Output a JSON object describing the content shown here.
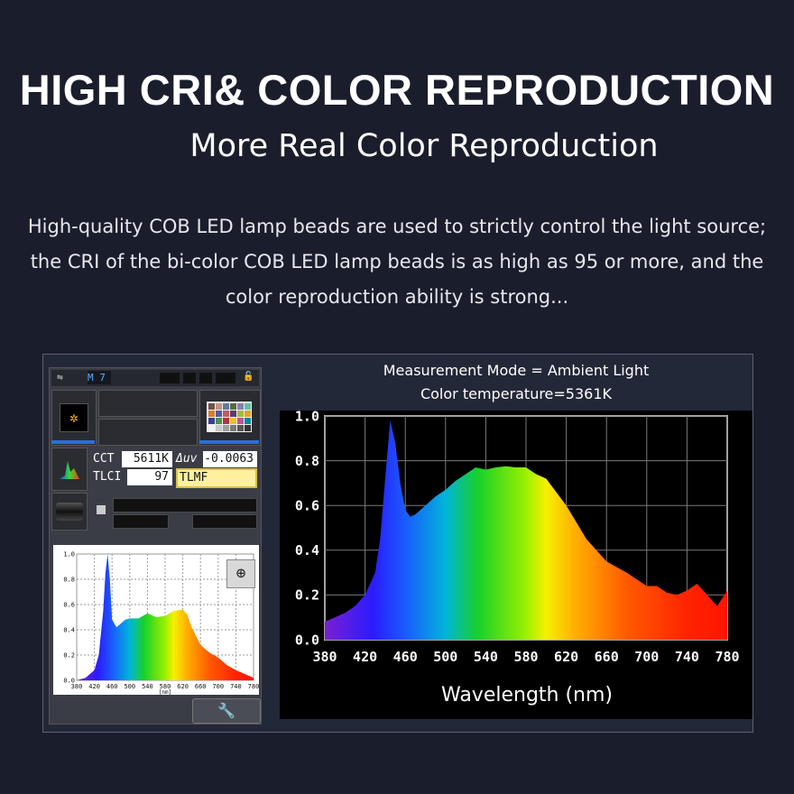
{
  "headline": "HIGH CRI& COLOR REPRODUCTION",
  "subheadline": "More Real Color Reproduction",
  "description": "High-quality COB LED lamp beads are used to strictly control the light source; the CRI of the bi-color COB LED lamp beads is as high as 95 or more, and the color reproduction ability is strong...",
  "device": {
    "mode_label": "M 7",
    "cct_label": "CCT",
    "cct_value": "5611K",
    "duv_label": "Δuv",
    "duv_value": "-0.0063",
    "tlci_label": "TLCI",
    "tlci_value": "97",
    "tlmf_label": "TLMF",
    "mini_chart_unit": "[nm]",
    "icons": {
      "usb": "usb-icon",
      "sun": "sun-icon",
      "color_checker": "color-checker-icon",
      "spectrum": "spectrum-icon",
      "zoom": "zoom-in-icon",
      "wrench": "wrench-icon",
      "lock": "lock-icon"
    }
  },
  "chart_data": [
    {
      "type": "area",
      "title": "",
      "xlabel": "",
      "ylabel": "",
      "x_unit": "[nm]",
      "xlim": [
        380,
        780
      ],
      "ylim": [
        0,
        1.0
      ],
      "x_ticks": [
        380,
        420,
        460,
        500,
        540,
        580,
        620,
        660,
        700,
        740,
        780
      ],
      "y_ticks": [
        "0.0",
        "0.2",
        "0.4",
        "0.6",
        "0.8",
        "1.0"
      ],
      "grid": true,
      "x": [
        380,
        400,
        420,
        430,
        440,
        445,
        450,
        455,
        460,
        470,
        480,
        490,
        500,
        520,
        540,
        560,
        580,
        600,
        620,
        630,
        640,
        660,
        680,
        700,
        720,
        740,
        760,
        780
      ],
      "values": [
        0.0,
        0.02,
        0.08,
        0.2,
        0.55,
        0.85,
        1.0,
        0.8,
        0.48,
        0.42,
        0.45,
        0.48,
        0.49,
        0.49,
        0.53,
        0.5,
        0.51,
        0.55,
        0.56,
        0.52,
        0.42,
        0.28,
        0.22,
        0.18,
        0.12,
        0.08,
        0.05,
        0.02
      ]
    },
    {
      "type": "area",
      "title": "Measurement Mode = Ambient Light",
      "subtitle": "Color temperature=5361K",
      "xlabel": "Wavelength (nm)",
      "ylabel": "",
      "xlim": [
        380,
        780
      ],
      "ylim": [
        0,
        1.0
      ],
      "x_ticks": [
        380,
        420,
        460,
        500,
        540,
        580,
        620,
        660,
        700,
        740,
        780
      ],
      "y_ticks": [
        "0.0",
        "0.2",
        "0.4",
        "0.6",
        "0.8",
        "1.0"
      ],
      "grid": true,
      "x": [
        380,
        390,
        400,
        410,
        420,
        430,
        435,
        440,
        445,
        450,
        455,
        460,
        465,
        470,
        480,
        490,
        500,
        510,
        520,
        530,
        540,
        550,
        560,
        570,
        580,
        590,
        600,
        620,
        640,
        660,
        680,
        700,
        710,
        720,
        730,
        740,
        750,
        760,
        770,
        780
      ],
      "values": [
        0.08,
        0.1,
        0.12,
        0.15,
        0.2,
        0.3,
        0.45,
        0.72,
        0.98,
        0.88,
        0.7,
        0.58,
        0.55,
        0.56,
        0.6,
        0.64,
        0.67,
        0.71,
        0.74,
        0.77,
        0.76,
        0.77,
        0.775,
        0.77,
        0.77,
        0.74,
        0.72,
        0.6,
        0.45,
        0.35,
        0.3,
        0.24,
        0.24,
        0.21,
        0.2,
        0.22,
        0.25,
        0.2,
        0.15,
        0.22
      ]
    }
  ]
}
